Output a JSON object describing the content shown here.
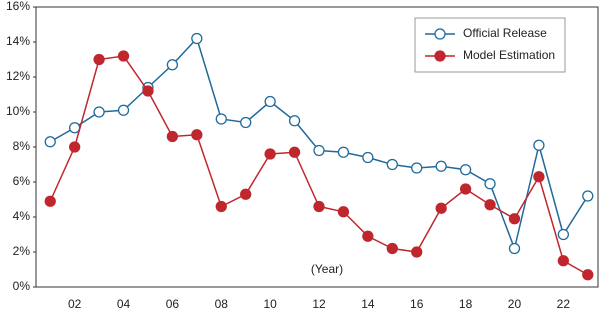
{
  "chart_data": {
    "type": "line",
    "categories": [
      null,
      "02",
      null,
      "04",
      null,
      "06",
      null,
      "08",
      null,
      "10",
      null,
      "12",
      null,
      "14",
      null,
      "16",
      null,
      "18",
      null,
      "20",
      null,
      "22",
      null
    ],
    "series": [
      {
        "name": "Official Release",
        "color": "#1f6a9a",
        "marker": "hollow",
        "values": [
          8.3,
          9.1,
          10.0,
          10.1,
          11.4,
          12.7,
          14.2,
          9.6,
          9.4,
          10.6,
          9.5,
          7.8,
          7.7,
          7.4,
          7.0,
          6.8,
          6.9,
          6.7,
          5.9,
          2.2,
          8.1,
          3.0,
          5.2
        ]
      },
      {
        "name": "Model Estimation",
        "color": "#c0262d",
        "marker": "filled",
        "values": [
          4.9,
          8.0,
          13.0,
          13.2,
          11.2,
          8.6,
          8.7,
          4.6,
          5.3,
          7.6,
          7.7,
          4.6,
          4.3,
          2.9,
          2.2,
          2.0,
          4.5,
          5.6,
          4.7,
          3.9,
          6.3,
          1.5,
          0.7
        ]
      }
    ],
    "annotation": "(Year)",
    "ylim": [
      0,
      16
    ],
    "yticks": [
      {
        "value": 0,
        "label": "0%"
      },
      {
        "value": 2,
        "label": "2%"
      },
      {
        "value": 4,
        "label": "4%"
      },
      {
        "value": 6,
        "label": "6%"
      },
      {
        "value": 8,
        "label": "8%"
      },
      {
        "value": 10,
        "label": "10%"
      },
      {
        "value": 12,
        "label": "12%"
      },
      {
        "value": 14,
        "label": "14%"
      },
      {
        "value": 16,
        "label": "16%"
      }
    ],
    "grid": false,
    "legend": "upper right"
  }
}
